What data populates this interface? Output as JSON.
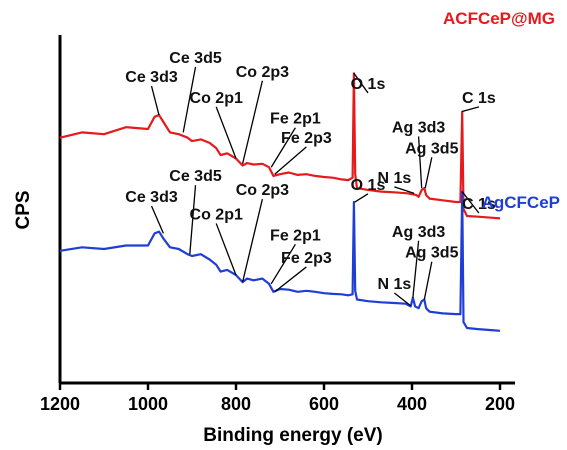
{
  "chart_data": {
    "type": "line",
    "xlabel": "Binding energy (eV)",
    "ylabel": "CPS",
    "xlim": [
      1200,
      200
    ],
    "x_reversed": true,
    "x_ticks": [
      "1200",
      "1000",
      "800",
      "600",
      "400",
      "200"
    ],
    "y_ticks_shown": false,
    "grid": false,
    "series": [
      {
        "name": "ACFCeP@MG",
        "color": "#e41a1c",
        "points": [
          [
            1200,
            0.705
          ],
          [
            1150,
            0.72
          ],
          [
            1100,
            0.715
          ],
          [
            1050,
            0.735
          ],
          [
            1000,
            0.73
          ],
          [
            985,
            0.765
          ],
          [
            975,
            0.77
          ],
          [
            965,
            0.75
          ],
          [
            950,
            0.72
          ],
          [
            930,
            0.715
          ],
          [
            910,
            0.705
          ],
          [
            900,
            0.695
          ],
          [
            880,
            0.7
          ],
          [
            860,
            0.69
          ],
          [
            845,
            0.675
          ],
          [
            835,
            0.655
          ],
          [
            820,
            0.66
          ],
          [
            800,
            0.645
          ],
          [
            785,
            0.625
          ],
          [
            775,
            0.632
          ],
          [
            760,
            0.628
          ],
          [
            740,
            0.63
          ],
          [
            725,
            0.62
          ],
          [
            715,
            0.595
          ],
          [
            700,
            0.6
          ],
          [
            680,
            0.605
          ],
          [
            660,
            0.598
          ],
          [
            640,
            0.6
          ],
          [
            620,
            0.595
          ],
          [
            600,
            0.592
          ],
          [
            580,
            0.59
          ],
          [
            560,
            0.585
          ],
          [
            545,
            0.583
          ],
          [
            535,
            0.59
          ],
          [
            532,
            0.89
          ],
          [
            529,
            0.6
          ],
          [
            525,
            0.56
          ],
          [
            500,
            0.555
          ],
          [
            470,
            0.55
          ],
          [
            440,
            0.548
          ],
          [
            410,
            0.545
          ],
          [
            390,
            0.54
          ],
          [
            385,
            0.535
          ],
          [
            378,
            0.555
          ],
          [
            372,
            0.56
          ],
          [
            368,
            0.54
          ],
          [
            360,
            0.53
          ],
          [
            330,
            0.525
          ],
          [
            300,
            0.52
          ],
          [
            290,
            0.52
          ],
          [
            286,
            0.78
          ],
          [
            283,
            0.5
          ],
          [
            275,
            0.48
          ],
          [
            250,
            0.478
          ],
          [
            220,
            0.475
          ],
          [
            200,
            0.473
          ]
        ]
      },
      {
        "name": "AgCFCeP",
        "color": "#1f3ed6",
        "points": [
          [
            1200,
            0.38
          ],
          [
            1150,
            0.39
          ],
          [
            1100,
            0.385
          ],
          [
            1050,
            0.395
          ],
          [
            1000,
            0.395
          ],
          [
            985,
            0.43
          ],
          [
            975,
            0.435
          ],
          [
            965,
            0.415
          ],
          [
            950,
            0.39
          ],
          [
            930,
            0.385
          ],
          [
            910,
            0.37
          ],
          [
            900,
            0.365
          ],
          [
            880,
            0.37
          ],
          [
            860,
            0.355
          ],
          [
            845,
            0.34
          ],
          [
            835,
            0.32
          ],
          [
            820,
            0.325
          ],
          [
            800,
            0.31
          ],
          [
            785,
            0.29
          ],
          [
            775,
            0.3
          ],
          [
            760,
            0.295
          ],
          [
            740,
            0.3
          ],
          [
            725,
            0.285
          ],
          [
            715,
            0.262
          ],
          [
            700,
            0.27
          ],
          [
            680,
            0.268
          ],
          [
            660,
            0.262
          ],
          [
            640,
            0.265
          ],
          [
            620,
            0.262
          ],
          [
            600,
            0.258
          ],
          [
            580,
            0.256
          ],
          [
            560,
            0.255
          ],
          [
            545,
            0.252
          ],
          [
            535,
            0.255
          ],
          [
            532,
            0.52
          ],
          [
            529,
            0.265
          ],
          [
            525,
            0.24
          ],
          [
            500,
            0.235
          ],
          [
            470,
            0.232
          ],
          [
            440,
            0.23
          ],
          [
            415,
            0.228
          ],
          [
            403,
            0.22
          ],
          [
            398,
            0.245
          ],
          [
            393,
            0.22
          ],
          [
            385,
            0.215
          ],
          [
            378,
            0.235
          ],
          [
            372,
            0.24
          ],
          [
            368,
            0.215
          ],
          [
            360,
            0.205
          ],
          [
            330,
            0.2
          ],
          [
            300,
            0.198
          ],
          [
            290,
            0.198
          ],
          [
            286,
            0.55
          ],
          [
            283,
            0.175
          ],
          [
            275,
            0.158
          ],
          [
            250,
            0.155
          ],
          [
            220,
            0.152
          ],
          [
            200,
            0.15
          ]
        ]
      }
    ],
    "annotations": [
      {
        "text": "Ce 3d5",
        "x": 892,
        "y": 0.92,
        "tip_x": 920,
        "tip_y": 0.72
      },
      {
        "text": "Ce 3d3",
        "x": 992,
        "y": 0.865,
        "tip_x": 975,
        "tip_y": 0.77
      },
      {
        "text": "Co 2p3",
        "x": 740,
        "y": 0.88,
        "tip_x": 785,
        "tip_y": 0.63
      },
      {
        "text": "Co 2p1",
        "x": 845,
        "y": 0.805,
        "tip_x": 800,
        "tip_y": 0.645
      },
      {
        "text": "Fe 2p1",
        "x": 665,
        "y": 0.745,
        "tip_x": 720,
        "tip_y": 0.62
      },
      {
        "text": "Fe 2p3",
        "x": 640,
        "y": 0.69,
        "tip_x": 712,
        "tip_y": 0.6
      },
      {
        "text": "O 1s",
        "x": 500,
        "y": 0.845,
        "tip_x": 532,
        "tip_y": 0.89
      },
      {
        "text": "Ag 3d3",
        "x": 385,
        "y": 0.72,
        "tip_x": 378,
        "tip_y": 0.56
      },
      {
        "text": "Ag 3d5",
        "x": 355,
        "y": 0.66,
        "tip_x": 370,
        "tip_y": 0.56
      },
      {
        "text": "N 1s",
        "x": 440,
        "y": 0.575,
        "tip_x": 395,
        "tip_y": 0.545
      },
      {
        "text": "C 1s",
        "x": 248,
        "y": 0.805,
        "tip_x": 286,
        "tip_y": 0.78
      },
      {
        "text": "Ce 3d5",
        "x": 892,
        "y": 0.58,
        "tip_x": 905,
        "tip_y": 0.37
      },
      {
        "text": "Ce 3d3",
        "x": 992,
        "y": 0.52,
        "tip_x": 965,
        "tip_y": 0.43
      },
      {
        "text": "Co 2p3",
        "x": 740,
        "y": 0.54,
        "tip_x": 785,
        "tip_y": 0.29
      },
      {
        "text": "Co 2p1",
        "x": 845,
        "y": 0.47,
        "tip_x": 800,
        "tip_y": 0.31
      },
      {
        "text": "Fe 2p1",
        "x": 665,
        "y": 0.41,
        "tip_x": 720,
        "tip_y": 0.285
      },
      {
        "text": "Fe 2p3",
        "x": 640,
        "y": 0.345,
        "tip_x": 712,
        "tip_y": 0.262
      },
      {
        "text": "O 1s",
        "x": 500,
        "y": 0.555,
        "tip_x": 530,
        "tip_y": 0.52
      },
      {
        "text": "Ag 3d3",
        "x": 385,
        "y": 0.42,
        "tip_x": 398,
        "tip_y": 0.245
      },
      {
        "text": "Ag 3d5",
        "x": 355,
        "y": 0.36,
        "tip_x": 372,
        "tip_y": 0.24
      },
      {
        "text": "N 1s",
        "x": 440,
        "y": 0.27,
        "tip_x": 403,
        "tip_y": 0.222
      },
      {
        "text": "C 1s",
        "x": 248,
        "y": 0.5,
        "tip_x": 286,
        "tip_y": 0.55
      }
    ]
  }
}
